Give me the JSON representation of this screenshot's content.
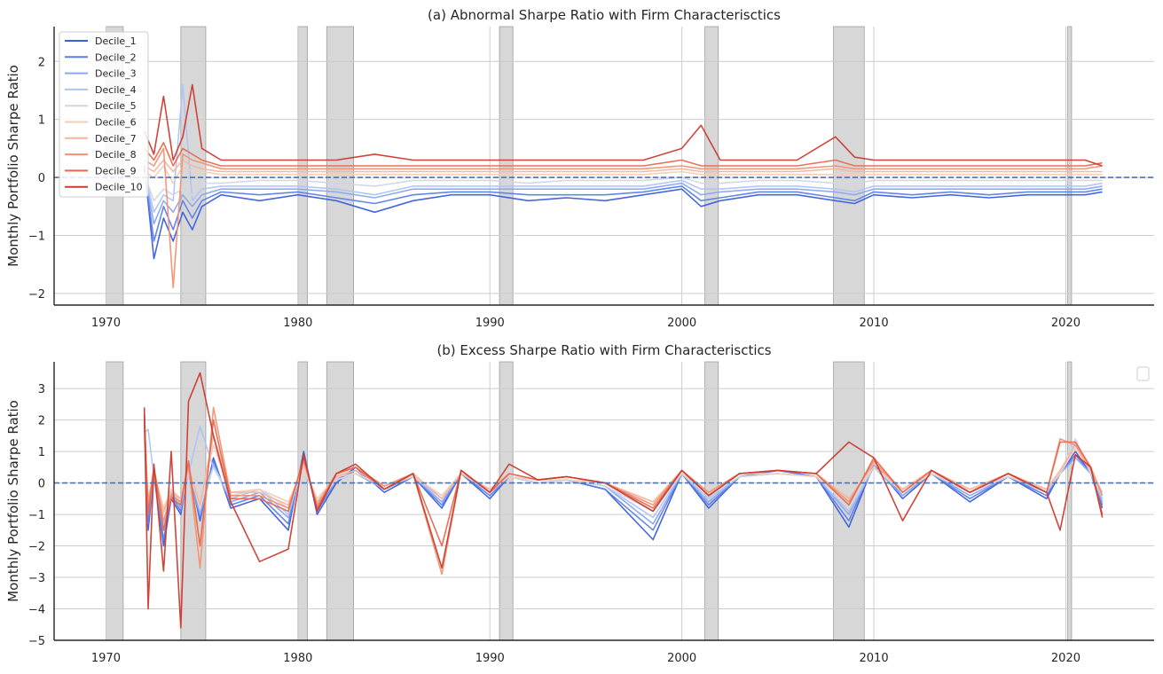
{
  "chart_data": [
    {
      "type": "line",
      "title": "(a) Abnormal Sharpe Ratio with Firm Characterisctics",
      "xlabel": "",
      "ylabel": "Monthly Portfolio Sharpe Ratio",
      "xlim": [
        1967.3,
        2024.6
      ],
      "ylim": [
        -2.2,
        2.6
      ],
      "xticks": [
        "1970",
        "1980",
        "1990",
        "2000",
        "2010",
        "2020"
      ],
      "yticks": [
        "−2",
        "−1",
        "0",
        "1",
        "2"
      ],
      "grid": true,
      "legend": "top-left",
      "reference_line": {
        "y": 0,
        "style": "dashed",
        "color": "#4c72b0"
      },
      "shaded_periods": [
        [
          1970.0,
          1970.9
        ],
        [
          1973.9,
          1975.2
        ],
        [
          1980.0,
          1980.5
        ],
        [
          1981.5,
          1982.9
        ],
        [
          1990.5,
          1991.2
        ],
        [
          2001.2,
          2001.9
        ],
        [
          2007.9,
          2009.5
        ],
        [
          2020.1,
          2020.3
        ]
      ],
      "x": [
        1972.0,
        1972.5,
        1973.0,
        1973.5,
        1974.0,
        1974.5,
        1975.0,
        1976.0,
        1978.0,
        1980.0,
        1982.0,
        1984.0,
        1986.0,
        1988.0,
        1990.0,
        1992.0,
        1994.0,
        1996.0,
        1998.0,
        2000.0,
        2001.0,
        2002.0,
        2004.0,
        2006.0,
        2008.0,
        2009.0,
        2010.0,
        2012.0,
        2014.0,
        2016.0,
        2018.0,
        2020.0,
        2021.0,
        2021.9
      ],
      "series": [
        {
          "name": "Decile_1",
          "color": "#3b5fdc",
          "values": [
            0.2,
            -1.4,
            -0.7,
            -1.1,
            -0.6,
            -0.9,
            -0.5,
            -0.3,
            -0.4,
            -0.3,
            -0.4,
            -0.6,
            -0.4,
            -0.3,
            -0.3,
            -0.4,
            -0.35,
            -0.4,
            -0.3,
            -0.2,
            -0.5,
            -0.4,
            -0.3,
            -0.3,
            -0.4,
            -0.45,
            -0.3,
            -0.35,
            -0.3,
            -0.35,
            -0.3,
            -0.3,
            -0.3,
            -0.25
          ]
        },
        {
          "name": "Decile_2",
          "color": "#5b7fe8",
          "values": [
            0.15,
            -1.1,
            -0.5,
            -0.9,
            -0.4,
            -0.7,
            -0.4,
            -0.25,
            -0.3,
            -0.25,
            -0.35,
            -0.45,
            -0.3,
            -0.25,
            -0.25,
            -0.3,
            -0.3,
            -0.3,
            -0.25,
            -0.15,
            -0.4,
            -0.35,
            -0.25,
            -0.25,
            -0.35,
            -0.4,
            -0.25,
            -0.3,
            -0.25,
            -0.3,
            -0.25,
            -0.25,
            -0.25,
            -0.2
          ]
        },
        {
          "name": "Decile_3",
          "color": "#8aa6ef",
          "values": [
            0.1,
            -0.8,
            -0.4,
            -0.6,
            -0.3,
            -0.5,
            -0.3,
            -0.2,
            -0.2,
            -0.2,
            -0.25,
            -0.35,
            -0.2,
            -0.2,
            -0.2,
            -0.2,
            -0.2,
            -0.2,
            -0.2,
            -0.1,
            -0.3,
            -0.25,
            -0.2,
            -0.2,
            -0.25,
            -0.3,
            -0.2,
            -0.2,
            -0.2,
            -0.2,
            -0.2,
            -0.2,
            -0.2,
            -0.15
          ]
        },
        {
          "name": "Decile_4",
          "color": "#aec4f5",
          "values": [
            0.1,
            -0.6,
            -0.3,
            -0.4,
            1.6,
            -0.4,
            -0.2,
            -0.15,
            -0.15,
            -0.15,
            -0.2,
            -0.3,
            -0.15,
            -0.15,
            -0.15,
            -0.15,
            -0.15,
            -0.15,
            -0.15,
            -0.05,
            -0.2,
            -0.2,
            -0.15,
            -0.15,
            -0.2,
            -0.25,
            -0.15,
            -0.15,
            -0.15,
            -0.15,
            -0.15,
            -0.15,
            -0.15,
            -0.1
          ]
        },
        {
          "name": "Decile_5",
          "color": "#cfd6e6",
          "values": [
            0.05,
            -0.4,
            -0.2,
            -0.3,
            -0.2,
            -0.3,
            -0.1,
            -0.1,
            -0.05,
            -0.05,
            -0.1,
            -0.15,
            -0.05,
            -0.05,
            -0.05,
            -0.1,
            -0.05,
            -0.05,
            -0.05,
            0.0,
            -0.1,
            -0.1,
            -0.05,
            -0.05,
            -0.1,
            -0.1,
            -0.05,
            -0.05,
            -0.05,
            -0.05,
            -0.05,
            -0.05,
            -0.05,
            -0.05
          ]
        },
        {
          "name": "Decile_6",
          "color": "#f2cdb8",
          "values": [
            0.1,
            0.0,
            0.2,
            -0.1,
            0.2,
            0.1,
            0.1,
            0.05,
            0.05,
            0.05,
            0.05,
            0.05,
            0.05,
            0.05,
            0.05,
            0.05,
            0.05,
            0.05,
            0.05,
            0.1,
            0.05,
            0.05,
            0.05,
            0.05,
            0.05,
            0.05,
            0.05,
            0.05,
            0.05,
            0.05,
            0.05,
            0.05,
            0.05,
            0.05
          ]
        },
        {
          "name": "Decile_7",
          "color": "#f5b59c",
          "values": [
            0.2,
            0.1,
            0.3,
            0.1,
            0.3,
            0.2,
            0.15,
            0.1,
            0.1,
            0.1,
            0.1,
            0.1,
            0.1,
            0.1,
            0.1,
            0.1,
            0.1,
            0.1,
            0.1,
            0.15,
            0.1,
            0.1,
            0.1,
            0.1,
            0.15,
            0.1,
            0.1,
            0.1,
            0.1,
            0.1,
            0.1,
            0.1,
            0.1,
            0.1
          ]
        },
        {
          "name": "Decile_8",
          "color": "#f29272",
          "values": [
            0.3,
            0.2,
            0.5,
            -1.9,
            0.4,
            0.3,
            0.25,
            0.15,
            0.15,
            0.15,
            0.15,
            0.15,
            0.15,
            0.15,
            0.15,
            0.15,
            0.15,
            0.15,
            0.15,
            0.2,
            0.15,
            0.15,
            0.15,
            0.15,
            0.2,
            0.15,
            0.15,
            0.15,
            0.15,
            0.15,
            0.15,
            0.15,
            0.15,
            0.2
          ]
        },
        {
          "name": "Decile_9",
          "color": "#e8694f",
          "values": [
            0.5,
            0.3,
            0.6,
            0.2,
            0.5,
            0.4,
            0.3,
            0.2,
            0.2,
            0.2,
            0.2,
            0.2,
            0.2,
            0.2,
            0.2,
            0.2,
            0.2,
            0.2,
            0.2,
            0.3,
            0.2,
            0.2,
            0.2,
            0.2,
            0.3,
            0.2,
            0.2,
            0.2,
            0.2,
            0.2,
            0.2,
            0.2,
            0.2,
            0.25
          ]
        },
        {
          "name": "Decile_10",
          "color": "#cc3b2f",
          "values": [
            0.8,
            0.4,
            1.4,
            0.3,
            0.7,
            1.6,
            0.5,
            0.3,
            0.3,
            0.3,
            0.3,
            0.4,
            0.3,
            0.3,
            0.3,
            0.3,
            0.3,
            0.3,
            0.3,
            0.5,
            0.9,
            0.3,
            0.3,
            0.3,
            0.7,
            0.35,
            0.3,
            0.3,
            0.3,
            0.3,
            0.3,
            0.3,
            0.3,
            0.2
          ]
        }
      ]
    },
    {
      "type": "line",
      "title": "(b) Excess Sharpe Ratio with Firm Characterisctics",
      "xlabel": "",
      "ylabel": "Monthly Portfolio Sharpe Ratio",
      "xlim": [
        1967.3,
        2024.6
      ],
      "ylim": [
        -5.0,
        3.85
      ],
      "xticks": [
        "1970",
        "1980",
        "1990",
        "2000",
        "2010",
        "2020"
      ],
      "yticks": [
        "−5",
        "−4",
        "−3",
        "−2",
        "−1",
        "0",
        "1",
        "2",
        "3"
      ],
      "grid": true,
      "legend": "top-right (empty)",
      "reference_line": {
        "y": 0,
        "style": "dashed",
        "color": "#4c72b0"
      },
      "shaded_periods": [
        [
          1970.0,
          1970.9
        ],
        [
          1973.9,
          1975.2
        ],
        [
          1980.0,
          1980.5
        ],
        [
          1981.5,
          1982.9
        ],
        [
          1990.5,
          1991.2
        ],
        [
          2001.2,
          2001.9
        ],
        [
          2007.9,
          2009.5
        ],
        [
          2020.1,
          2020.3
        ]
      ],
      "x": [
        1972.0,
        1972.2,
        1972.5,
        1973.0,
        1973.4,
        1973.9,
        1974.3,
        1974.9,
        1975.6,
        1976.5,
        1978.0,
        1979.5,
        1980.3,
        1981.0,
        1982.0,
        1983.0,
        1984.5,
        1986.0,
        1987.5,
        1988.5,
        1990.0,
        1991.0,
        1992.5,
        1994.0,
        1996.0,
        1998.5,
        2000.0,
        2001.4,
        2003.0,
        2005.0,
        2007.0,
        2008.7,
        2010.0,
        2011.5,
        2013.0,
        2015.0,
        2017.0,
        2019.0,
        2019.7,
        2020.5,
        2021.3,
        2021.9
      ],
      "series": [
        {
          "name": "Decile_1",
          "color": "#3b5fdc",
          "values": [
            2.2,
            -1.5,
            0.3,
            -2.0,
            -0.5,
            -1.0,
            0.5,
            -1.2,
            0.8,
            -0.8,
            -0.5,
            -1.5,
            1.0,
            -1.0,
            0.0,
            0.5,
            -0.3,
            0.2,
            -0.8,
            0.3,
            -0.5,
            0.2,
            0.0,
            0.1,
            -0.2,
            -1.8,
            0.3,
            -0.8,
            0.2,
            0.4,
            0.2,
            -1.4,
            0.6,
            -0.5,
            0.3,
            -0.6,
            0.2,
            -0.5,
            0.3,
            1.0,
            0.3,
            -0.8
          ]
        },
        {
          "name": "Decile_2",
          "color": "#5b7fe8",
          "values": [
            2.0,
            -1.3,
            0.2,
            -1.8,
            -0.4,
            -0.9,
            0.4,
            -1.1,
            0.7,
            -0.7,
            -0.4,
            -1.3,
            0.8,
            -0.9,
            0.1,
            0.4,
            -0.2,
            0.2,
            -0.7,
            0.3,
            -0.4,
            0.2,
            0.0,
            0.1,
            -0.2,
            -1.5,
            0.3,
            -0.7,
            0.2,
            0.4,
            0.2,
            -1.2,
            0.6,
            -0.4,
            0.3,
            -0.5,
            0.2,
            -0.4,
            0.3,
            0.9,
            0.3,
            -0.7
          ]
        },
        {
          "name": "Decile_3",
          "color": "#8aa6ef",
          "values": [
            1.8,
            -1.0,
            0.2,
            -1.5,
            -0.3,
            -0.8,
            0.3,
            -1.0,
            0.6,
            -0.6,
            -0.3,
            -1.1,
            0.7,
            -0.8,
            0.1,
            0.3,
            -0.2,
            0.2,
            -0.6,
            0.3,
            -0.3,
            0.2,
            0.0,
            0.1,
            -0.1,
            -1.3,
            0.3,
            -0.6,
            0.2,
            0.3,
            0.2,
            -1.0,
            0.5,
            -0.4,
            0.3,
            -0.4,
            0.2,
            -0.3,
            0.3,
            0.8,
            0.3,
            -0.6
          ]
        },
        {
          "name": "Decile_4",
          "color": "#aec4f5",
          "values": [
            1.6,
            1.7,
            0.2,
            -1.3,
            -0.2,
            -0.7,
            0.3,
            1.8,
            0.5,
            -0.5,
            -0.2,
            -1.0,
            0.6,
            -0.7,
            0.1,
            0.3,
            -0.1,
            0.2,
            -0.5,
            0.3,
            -0.3,
            0.2,
            0.0,
            0.1,
            -0.1,
            -1.1,
            0.3,
            -0.5,
            0.2,
            0.3,
            0.2,
            -0.9,
            0.5,
            -0.3,
            0.3,
            -0.3,
            0.2,
            -0.3,
            0.3,
            1.3,
            0.3,
            -0.5
          ]
        },
        {
          "name": "Decile_5",
          "color": "#cfd6e6",
          "values": [
            1.4,
            -0.6,
            0.2,
            -1.0,
            -0.2,
            -0.6,
            0.3,
            -0.7,
            0.5,
            -0.4,
            -0.2,
            -0.8,
            0.5,
            -0.6,
            0.1,
            0.3,
            -0.1,
            0.2,
            -0.4,
            0.3,
            -0.2,
            0.2,
            0.0,
            0.1,
            -0.1,
            -0.9,
            0.3,
            -0.4,
            0.2,
            0.3,
            0.2,
            -0.7,
            0.5,
            -0.3,
            0.3,
            -0.3,
            0.2,
            -0.2,
            0.3,
            1.4,
            0.3,
            -0.4
          ]
        },
        {
          "name": "Decile_6",
          "color": "#f2cdb8",
          "values": [
            1.5,
            -0.5,
            0.3,
            -0.8,
            -0.2,
            -0.5,
            0.4,
            -0.6,
            1.2,
            -0.3,
            -0.2,
            -0.6,
            0.5,
            -0.5,
            0.2,
            0.3,
            -0.1,
            0.2,
            -0.4,
            0.3,
            -0.2,
            0.2,
            0.1,
            0.1,
            0.0,
            -0.6,
            0.3,
            -0.3,
            0.3,
            0.3,
            0.2,
            -0.5,
            0.5,
            -0.2,
            0.3,
            -0.2,
            0.2,
            -0.2,
            0.3,
            1.1,
            0.4,
            -0.3
          ]
        },
        {
          "name": "Decile_7",
          "color": "#f5b59c",
          "values": [
            1.8,
            -0.6,
            0.4,
            -0.9,
            -0.3,
            -0.5,
            0.5,
            -0.7,
            1.5,
            -0.3,
            -0.3,
            -0.7,
            0.6,
            -0.6,
            0.2,
            0.4,
            -0.1,
            0.3,
            -0.5,
            0.3,
            -0.2,
            0.3,
            0.1,
            0.2,
            0.0,
            -0.6,
            0.4,
            -0.3,
            0.3,
            0.4,
            0.3,
            -0.5,
            0.6,
            -0.2,
            0.4,
            -0.2,
            0.3,
            -0.2,
            0.4,
            1.2,
            0.4,
            -0.3
          ]
        },
        {
          "name": "Decile_8",
          "color": "#f29272",
          "values": [
            2.0,
            -0.8,
            0.5,
            -1.2,
            -0.4,
            -0.6,
            0.6,
            -2.7,
            2.4,
            -0.4,
            -0.4,
            -0.8,
            0.7,
            -0.7,
            0.3,
            0.5,
            -0.1,
            0.3,
            -2.9,
            0.4,
            -0.3,
            0.3,
            0.1,
            0.2,
            0.0,
            -0.7,
            0.4,
            -0.3,
            0.3,
            0.4,
            0.3,
            -0.6,
            0.7,
            -0.3,
            0.4,
            -0.3,
            0.3,
            -0.3,
            1.4,
            1.2,
            0.5,
            -0.4
          ]
        },
        {
          "name": "Decile_9",
          "color": "#e8694f",
          "values": [
            2.2,
            -1.0,
            0.5,
            -1.5,
            -0.5,
            -0.7,
            0.7,
            -2.0,
            2.0,
            -0.5,
            -0.5,
            -0.9,
            0.8,
            -0.8,
            0.3,
            0.5,
            -0.2,
            0.3,
            -2.0,
            0.4,
            -0.3,
            0.3,
            0.1,
            0.2,
            0.0,
            -0.8,
            0.4,
            -0.4,
            0.3,
            0.4,
            0.3,
            -0.7,
            0.8,
            -0.3,
            0.4,
            -0.3,
            0.3,
            -0.3,
            1.3,
            1.3,
            0.5,
            -1.0
          ]
        },
        {
          "name": "Decile_10",
          "color": "#cc3b2f",
          "values": [
            2.4,
            -4.0,
            0.6,
            -2.8,
            1.0,
            -4.6,
            2.6,
            3.5,
            1.5,
            -0.6,
            -2.5,
            -2.1,
            0.9,
            -0.9,
            0.3,
            0.6,
            -0.2,
            0.3,
            -2.7,
            0.4,
            -0.3,
            0.6,
            0.1,
            0.2,
            0.0,
            -0.9,
            0.4,
            -0.4,
            0.3,
            0.4,
            0.3,
            1.3,
            0.8,
            -1.2,
            0.4,
            -0.3,
            0.3,
            -0.3,
            -1.5,
            0.9,
            0.5,
            -1.1
          ]
        }
      ]
    }
  ]
}
